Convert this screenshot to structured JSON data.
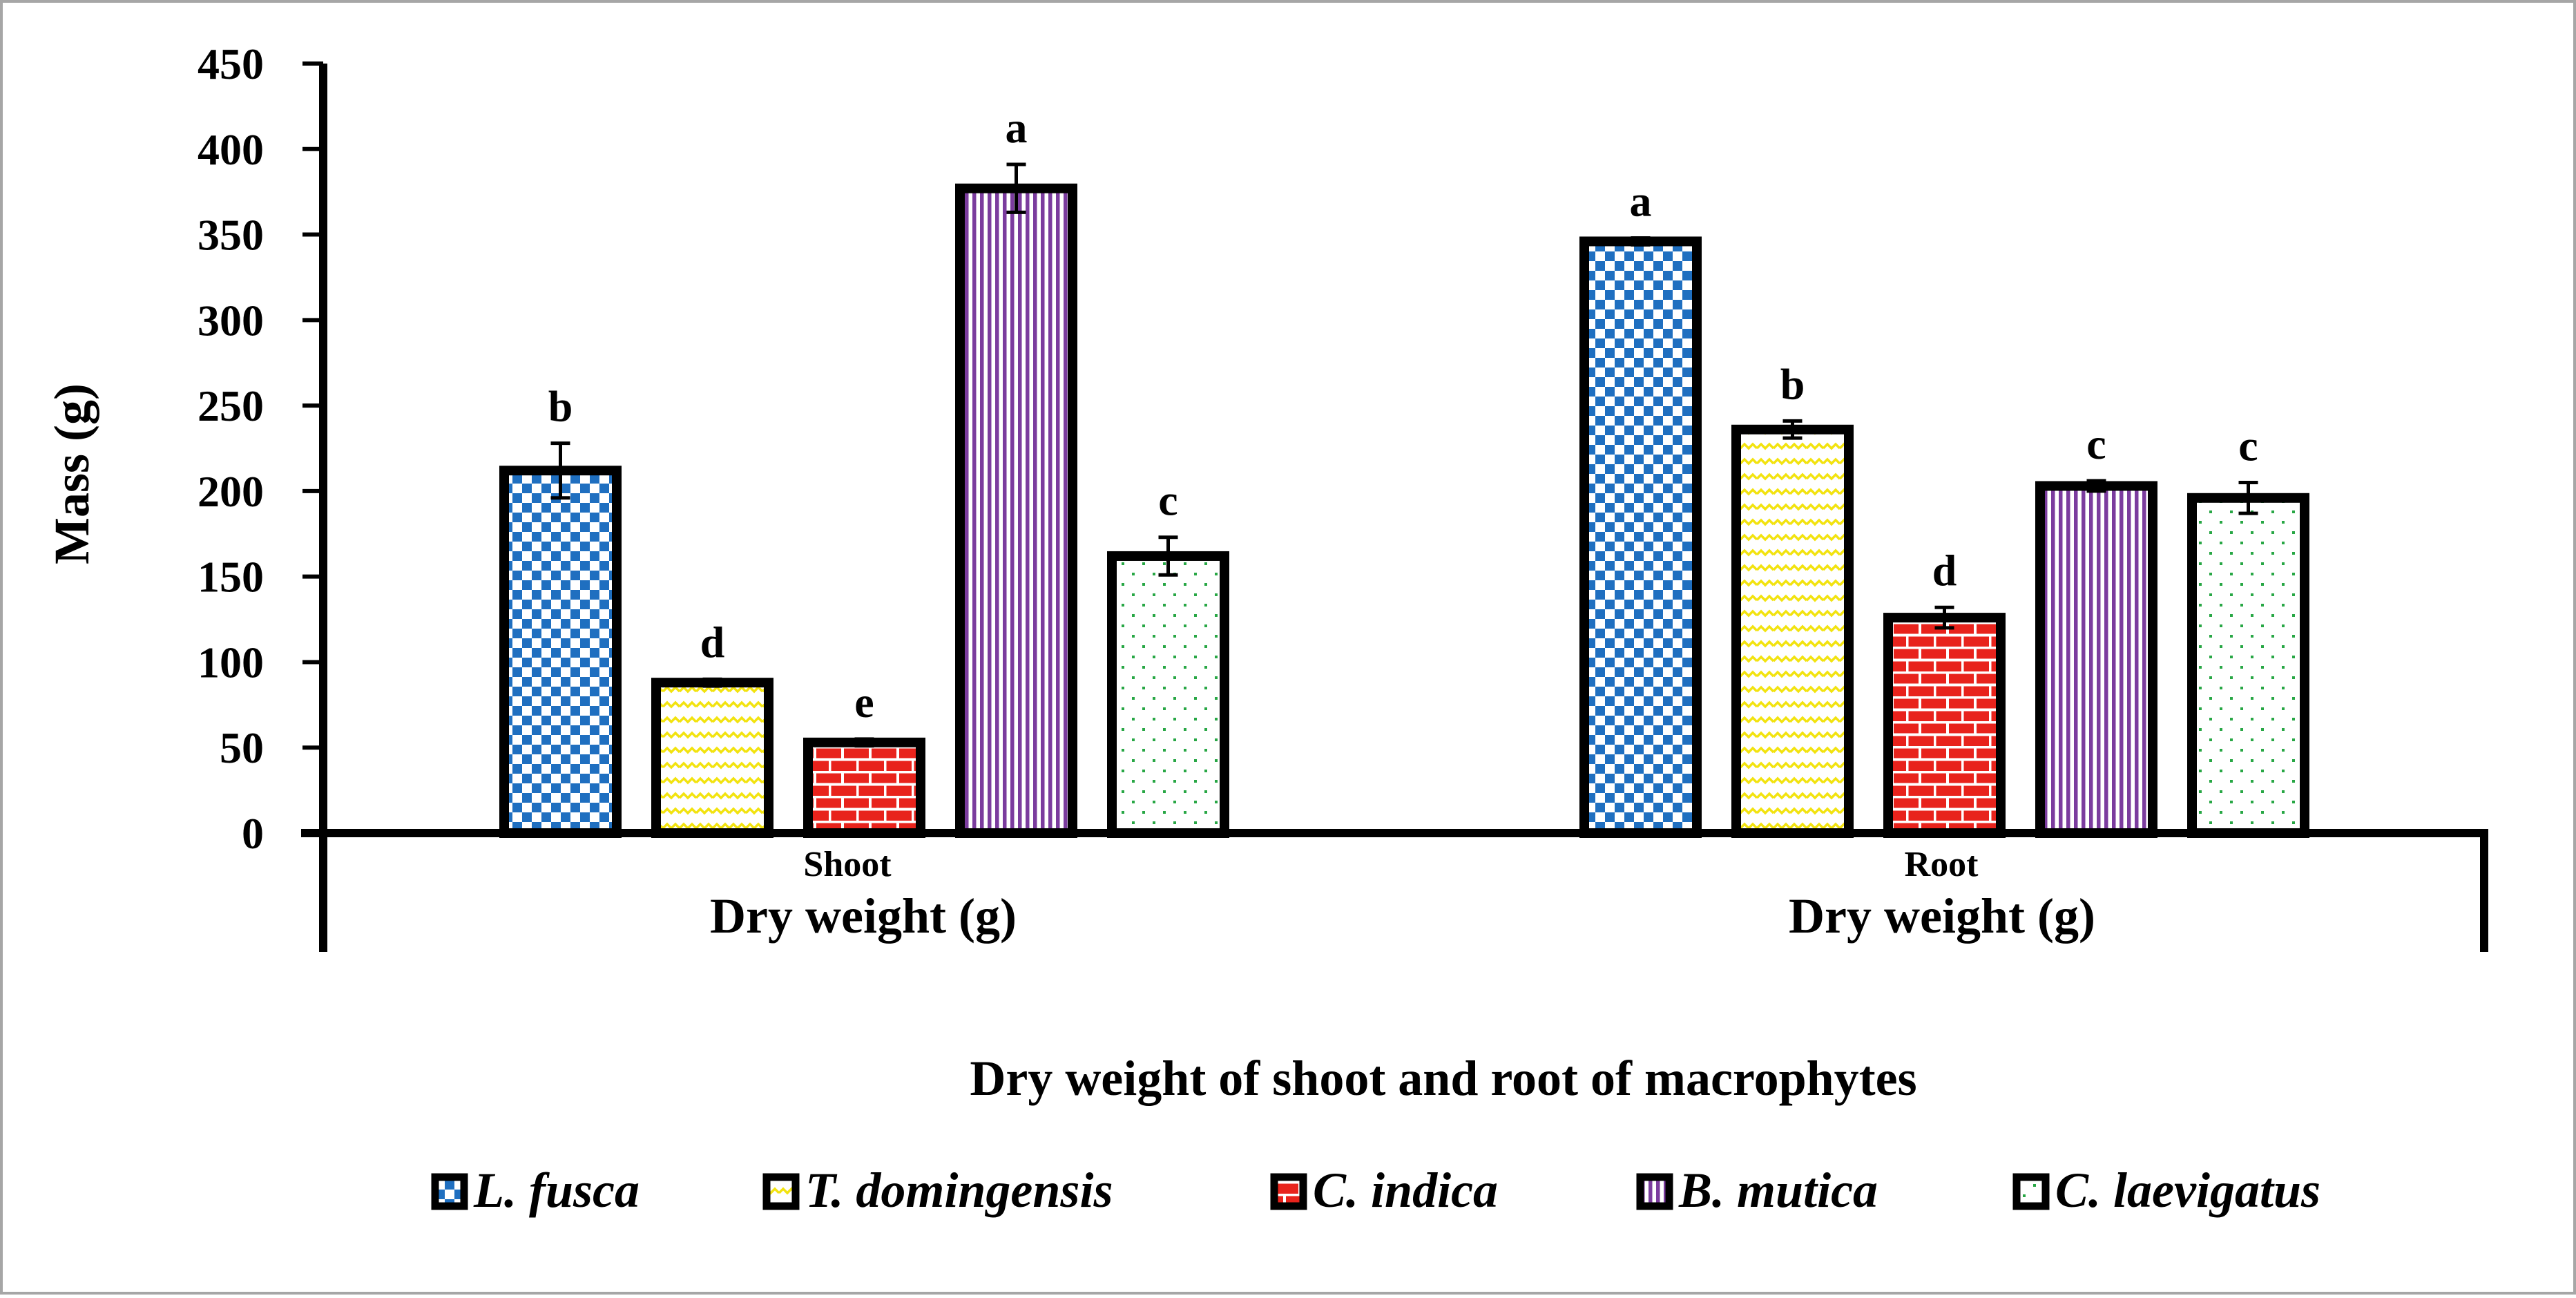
{
  "chart_data": {
    "type": "bar",
    "title": "Dry weight of shoot and root of macrophytes",
    "ylabel": "Mass (g)",
    "ylim": [
      0,
      450
    ],
    "yticks": [
      0,
      50,
      100,
      150,
      200,
      250,
      300,
      350,
      400,
      450
    ],
    "group_sublabels": [
      "Shoot",
      "Root"
    ],
    "group_labels": [
      "Dry weight (g)",
      "Dry weight (g)"
    ],
    "legend_position": "bottom",
    "series": [
      {
        "name": "L. fusca",
        "values": [
          212,
          346
        ],
        "errors": [
          16,
          2
        ],
        "letters": [
          "b",
          "a"
        ],
        "color": "#1F6FC0",
        "pattern": "checker"
      },
      {
        "name": "T. domingensis",
        "values": [
          88,
          236
        ],
        "errors": [
          2,
          5
        ],
        "letters": [
          "d",
          "b"
        ],
        "color": "#F2E30F",
        "pattern": "wave"
      },
      {
        "name": "C. indica",
        "values": [
          53,
          126
        ],
        "errors": [
          2,
          6
        ],
        "letters": [
          "e",
          "d"
        ],
        "color": "#E8231C",
        "pattern": "brick"
      },
      {
        "name": "B. mutica",
        "values": [
          377,
          203
        ],
        "errors": [
          14,
          3
        ],
        "letters": [
          "a",
          "c"
        ],
        "color": "#7B3C9E",
        "pattern": "vlines"
      },
      {
        "name": "C. laevigatus",
        "values": [
          162,
          196
        ],
        "errors": [
          11,
          9
        ],
        "letters": [
          "c",
          "c"
        ],
        "color": "#28A745",
        "pattern": "dots"
      }
    ]
  }
}
